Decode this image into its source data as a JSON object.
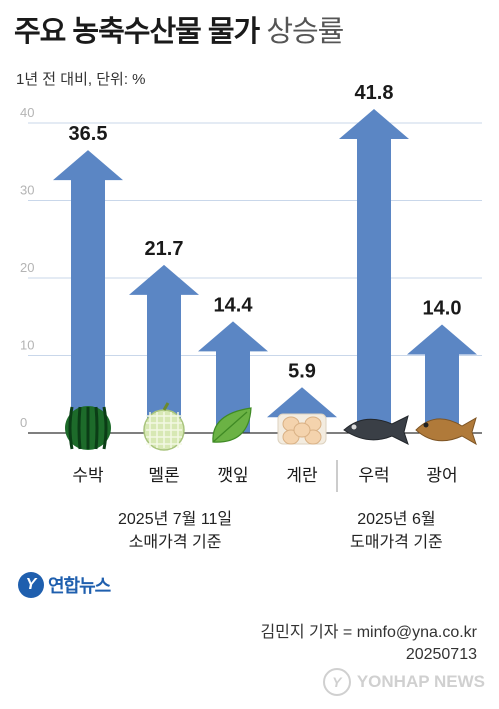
{
  "header": {
    "title_bold": "주요 농축수산물 물가",
    "title_light": "상승률",
    "unit_note": "1년 전 대비, 단위: %"
  },
  "chart_data": {
    "type": "bar",
    "title": "주요 농축수산물 물가 상승률",
    "ylabel": "",
    "ylim": [
      0,
      40
    ],
    "yticks": [
      0,
      10,
      20,
      30,
      40
    ],
    "categories": [
      "수박",
      "멜론",
      "깻잎",
      "계란",
      "우럭",
      "광어"
    ],
    "values": [
      36.5,
      21.7,
      14.4,
      5.9,
      41.8,
      14.0
    ],
    "value_labels": [
      "36.5",
      "21.7",
      "14.4",
      "5.9",
      "41.8",
      "14.0"
    ],
    "grid": true,
    "bar_color": "#5b86c4",
    "icons": [
      "watermelon-icon",
      "melon-icon",
      "perilla-leaf-icon",
      "egg-icon",
      "rockfish-icon",
      "flatfish-icon"
    ]
  },
  "notes": {
    "retail_line1": "2025년 7월 11일",
    "retail_line2": "소매가격 기준",
    "wholesale_line1": "2025년 6월",
    "wholesale_line2": "도매가격 기준"
  },
  "footer": {
    "logo_text": "연합뉴스",
    "reporter": "김민지 기자 = minfo@yna.co.kr",
    "date": "20250713",
    "watermark": "YONHAP NEWS"
  }
}
